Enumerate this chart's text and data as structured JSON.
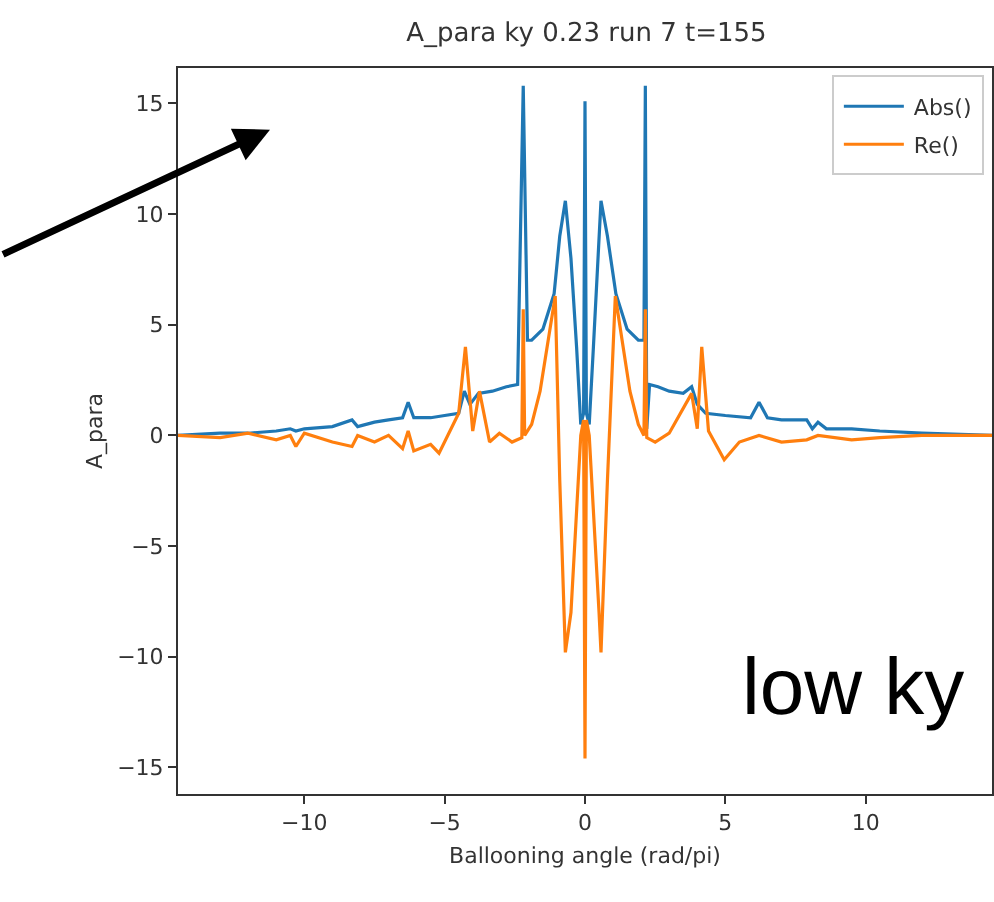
{
  "chart_data": {
    "type": "line",
    "title": "A_para ky 0.23 run 7 t=155",
    "xlabel": "Ballooning angle (rad/pi)",
    "ylabel": "A_para",
    "annotations": [
      "low ky"
    ],
    "xlim": [
      -14.5,
      14.5
    ],
    "ylim": [
      -16.2,
      16.6
    ],
    "xticks": [
      {
        "value": -10,
        "label": "−10"
      },
      {
        "value": -5,
        "label": "−5"
      },
      0,
      5,
      10
    ],
    "yticks": [
      {
        "value": -15,
        "label": "−15"
      },
      {
        "value": -10,
        "label": "−10"
      },
      {
        "value": -5,
        "label": "−5"
      },
      0,
      5,
      10,
      15
    ],
    "grid": false,
    "legend": "top right",
    "marker": "none",
    "line_style": "solid",
    "series": [
      {
        "name": "Abs()",
        "color": "#1f77b4",
        "x": [
          -14.5,
          -13,
          -12,
          -11,
          -10.5,
          -10.3,
          -10,
          -9,
          -8.3,
          -8.1,
          -7.5,
          -7,
          -6.5,
          -6.3,
          -6.1,
          -5.5,
          -5,
          -4.5,
          -4.3,
          -4.1,
          -3.8,
          -3.3,
          -2.8,
          -2.4,
          -2.2,
          -2.05,
          -1.9,
          -1.5,
          -1.1,
          -0.9,
          -0.7,
          -0.5,
          -0.3,
          -0.15,
          -0.05,
          0,
          0.05,
          0.15,
          0.3,
          0.57,
          0.8,
          1.1,
          1.5,
          1.9,
          2.1,
          2.15,
          2.2,
          2.3,
          2.6,
          3.0,
          3.5,
          3.8,
          4.0,
          4.3,
          5.0,
          5.9,
          6.2,
          6.5,
          7.0,
          7.9,
          8.1,
          8.3,
          8.6,
          9.5,
          10.5,
          12,
          14.5
        ],
        "values": [
          0.0,
          0.1,
          0.1,
          0.2,
          0.3,
          0.2,
          0.3,
          0.4,
          0.7,
          0.4,
          0.6,
          0.7,
          0.8,
          1.5,
          0.8,
          0.8,
          0.9,
          1.0,
          2.0,
          1.4,
          1.9,
          2.0,
          2.2,
          2.3,
          15.8,
          4.3,
          4.3,
          4.8,
          6.4,
          9.0,
          10.6,
          8.0,
          4.0,
          0.5,
          1.0,
          15.1,
          1.0,
          0.5,
          4.0,
          10.6,
          9.0,
          6.4,
          4.8,
          4.3,
          4.3,
          15.8,
          0.3,
          2.3,
          2.2,
          2.0,
          1.9,
          2.2,
          1.4,
          1.0,
          0.9,
          0.8,
          1.5,
          0.8,
          0.7,
          0.7,
          0.3,
          0.6,
          0.3,
          0.3,
          0.2,
          0.1,
          0.0
        ]
      },
      {
        "name": "Re()",
        "color": "#ff7f0e",
        "x": [
          -14.5,
          -13,
          -12,
          -11,
          -10.5,
          -10.3,
          -10,
          -9,
          -8.3,
          -8.1,
          -7.5,
          -7,
          -6.5,
          -6.3,
          -6.1,
          -5.5,
          -5.2,
          -4.5,
          -4.26,
          -4.0,
          -3.76,
          -3.4,
          -3.05,
          -2.6,
          -2.25,
          -2.2,
          -2.15,
          -1.9,
          -1.6,
          -1.06,
          -0.9,
          -0.7,
          -0.5,
          -0.15,
          -0.05,
          0,
          0.05,
          0.15,
          0.5,
          0.57,
          0.8,
          1.08,
          1.6,
          1.9,
          2.1,
          2.15,
          2.2,
          2.5,
          3.0,
          3.8,
          4.0,
          4.16,
          4.4,
          4.96,
          5.5,
          6.2,
          7.0,
          7.9,
          8.3,
          9.5,
          10.5,
          12,
          14.5
        ],
        "values": [
          0.0,
          -0.1,
          0.1,
          -0.2,
          0.0,
          -0.5,
          0.1,
          -0.3,
          -0.5,
          0.0,
          -0.3,
          0.0,
          -0.6,
          0.2,
          -0.7,
          -0.4,
          -0.8,
          1.0,
          4.0,
          0.2,
          2.0,
          -0.3,
          0.1,
          -0.3,
          -0.1,
          5.7,
          0.0,
          0.5,
          2.0,
          6.3,
          -2.0,
          -9.8,
          -8.0,
          0.0,
          0.7,
          -14.6,
          0.7,
          0.0,
          -8.0,
          -9.8,
          -2.0,
          6.3,
          2.0,
          0.5,
          0.0,
          5.7,
          -0.1,
          -0.3,
          0.1,
          1.9,
          0.3,
          4.0,
          0.2,
          -1.1,
          -0.3,
          0.0,
          -0.3,
          -0.2,
          0.0,
          -0.2,
          -0.1,
          0.0,
          0.0
        ]
      }
    ]
  }
}
